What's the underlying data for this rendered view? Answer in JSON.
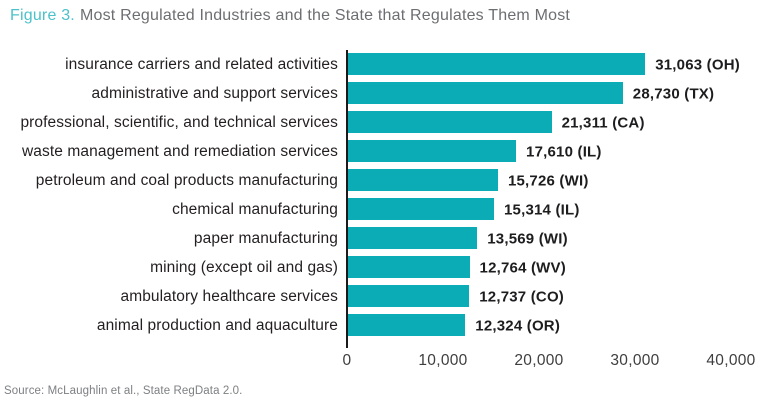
{
  "header": {
    "figure_label": "Figure 3.",
    "title": "Most Regulated Industries and the State that Regulates Them Most"
  },
  "source": "Source: McLaughlin et al., State RegData 2.0.",
  "chart_data": {
    "type": "bar",
    "orientation": "horizontal",
    "title": "Figure 3. Most Regulated Industries and the State that Regulates Them Most",
    "categories": [
      "insurance carriers and related activities",
      "administrative and support services",
      "professional, scientific, and technical services",
      "waste management and remediation services",
      "petroleum and coal products manufacturing",
      "chemical manufacturing",
      "paper manufacturing",
      "mining (except oil and gas)",
      "ambulatory healthcare services",
      "animal production and aquaculture"
    ],
    "values": [
      31063,
      28730,
      21311,
      17610,
      15726,
      15314,
      13569,
      12764,
      12737,
      12324
    ],
    "states": [
      "OH",
      "TX",
      "CA",
      "IL",
      "WI",
      "IL",
      "WI",
      "WV",
      "CO",
      "OR"
    ],
    "value_labels": [
      "31,063 (OH)",
      "28,730 (TX)",
      "21,311 (CA)",
      "17,610 (IL)",
      "15,726 (WI)",
      "15,314 (IL)",
      "13,569 (WI)",
      "12,764 (WV)",
      "12,737 (CO)",
      "12,324 (OR)"
    ],
    "xlabel": "",
    "ylabel": "",
    "xlim": [
      0,
      40000
    ],
    "x_ticks": [
      0,
      10000,
      20000,
      30000,
      40000
    ],
    "x_tick_labels": [
      "0",
      "10,000",
      "20,000",
      "30,000",
      "40,000"
    ],
    "grid": false,
    "legend": false,
    "bar_color": "#0bacb5",
    "colors": {
      "figure_label": "#4bc1ca",
      "title_text": "#6d6e71",
      "category_label": "#231f20",
      "value_label": "#1d1d1f",
      "tick_label": "#3e3e40",
      "axis_line": "#1a1a1a",
      "source_text": "#7d7f82"
    }
  }
}
